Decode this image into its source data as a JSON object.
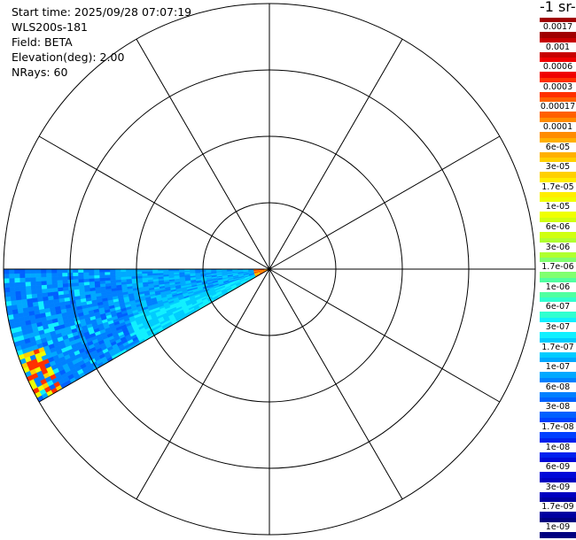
{
  "info": {
    "start_time": "Start time: 2025/09/28 07:07:19",
    "instrument": "WLS200s-181",
    "field": "Field: BETA",
    "elevation": "Elevation(deg): 2.00",
    "nrays": "NRays: 60"
  },
  "colorbar": {
    "title": "-1 sr-",
    "labels": [
      "0.0017",
      "0.001",
      "0.0006",
      "0.0003",
      "0.00017",
      "0.0001",
      "6e-05",
      "3e-05",
      "1.7e-05",
      "1e-05",
      "6e-06",
      "3e-06",
      "1.7e-06",
      "1e-06",
      "6e-07",
      "3e-07",
      "1.7e-07",
      "1e-07",
      "6e-08",
      "3e-08",
      "1.7e-08",
      "1e-08",
      "6e-09",
      "3e-09",
      "1.7e-09",
      "1e-09"
    ],
    "colors": [
      "#a00000",
      "#c80000",
      "#f00000",
      "#ff3000",
      "#ff6000",
      "#ff8c00",
      "#ffb000",
      "#ffd000",
      "#ffee00",
      "#f0ff00",
      "#d0ff10",
      "#b0ff30",
      "#80ff70",
      "#50ffa0",
      "#30ffd0",
      "#10f0ff",
      "#00ccff",
      "#00a8ff",
      "#0080ff",
      "#0060ff",
      "#0040ff",
      "#0020ee",
      "#0008d8",
      "#0000c0",
      "#0000a0",
      "#000080"
    ]
  },
  "chart_data": {
    "type": "heatmap",
    "projection": "polar",
    "rings": 4,
    "spokes": 12,
    "sector_azimuth_deg": [
      240,
      270
    ],
    "grid": true
  }
}
